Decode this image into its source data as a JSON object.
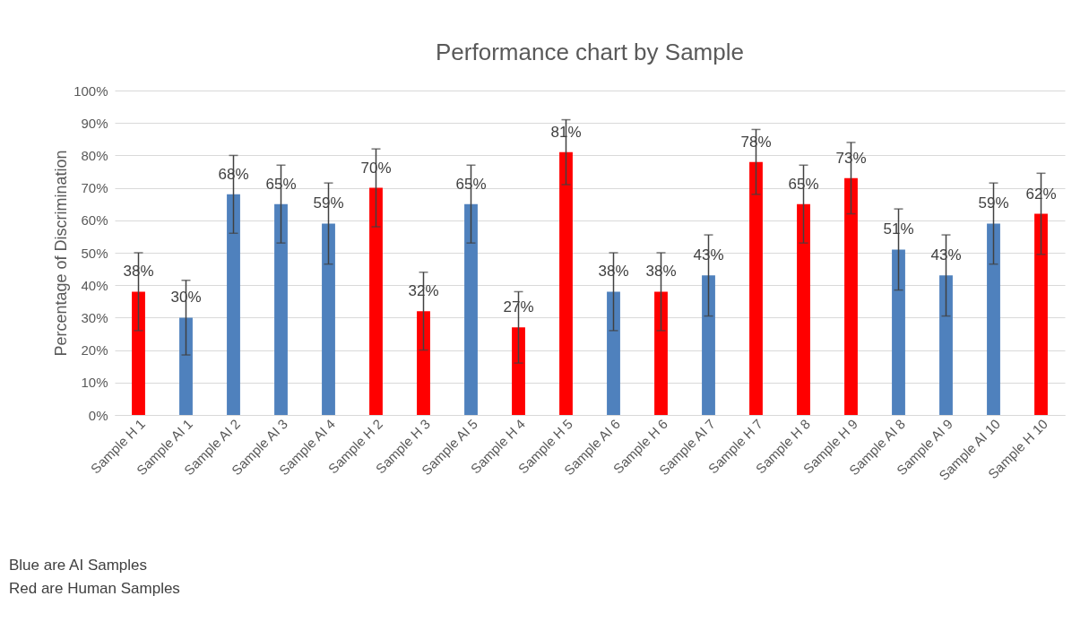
{
  "chart_data": {
    "type": "bar",
    "title": "Performance chart by Sample",
    "ylabel": "Percentage of Discrimination",
    "categories": [
      "Sample H 1",
      "Sample AI 1",
      "Sample AI 2",
      "Sample AI 3",
      "Sample AI 4",
      "Sample H 2",
      "Sample H 3",
      "Sample AI 5",
      "Sample H 4",
      "Sample H 5",
      "Sample AI 6",
      "Sample H 6",
      "Sample AI 7",
      "Sample H 7",
      "Sample H 8",
      "Sample H 9",
      "Sample AI 8",
      "Sample AI 9",
      "Sample AI 10",
      "Sample H 10"
    ],
    "values": [
      38,
      30,
      68,
      65,
      59,
      70,
      32,
      65,
      27,
      81,
      38,
      38,
      43,
      78,
      65,
      73,
      51,
      43,
      59,
      62
    ],
    "value_labels": [
      "38%",
      "30%",
      "68%",
      "65%",
      "59%",
      "70%",
      "32%",
      "65%",
      "27%",
      "81%",
      "38%",
      "38%",
      "43%",
      "78%",
      "65%",
      "73%",
      "51%",
      "43%",
      "59%",
      "62%"
    ],
    "errors": [
      12,
      11.5,
      12,
      12,
      12.5,
      12,
      12,
      12,
      11,
      10,
      12,
      12,
      12.5,
      10,
      12,
      11,
      12.5,
      12.5,
      12.5,
      12.5
    ],
    "colors": [
      "#ff0000",
      "#4f81bd",
      "#4f81bd",
      "#4f81bd",
      "#4f81bd",
      "#ff0000",
      "#ff0000",
      "#4f81bd",
      "#ff0000",
      "#ff0000",
      "#4f81bd",
      "#ff0000",
      "#4f81bd",
      "#ff0000",
      "#ff0000",
      "#ff0000",
      "#4f81bd",
      "#4f81bd",
      "#4f81bd",
      "#ff0000"
    ],
    "ylim": [
      0,
      100
    ],
    "yticks": [
      {
        "value": 0,
        "label": "0%"
      },
      {
        "value": 10,
        "label": "10%"
      },
      {
        "value": 20,
        "label": "20%"
      },
      {
        "value": 30,
        "label": "30%"
      },
      {
        "value": 40,
        "label": "40%"
      },
      {
        "value": 50,
        "label": "50%"
      },
      {
        "value": 60,
        "label": "60%"
      },
      {
        "value": 70,
        "label": "70%"
      },
      {
        "value": 80,
        "label": "80%"
      },
      {
        "value": 90,
        "label": "90%"
      },
      {
        "value": 100,
        "label": "100%"
      }
    ],
    "grid": "y",
    "annotations": [
      "Blue are AI Samples",
      "Red are Human Samples"
    ]
  }
}
